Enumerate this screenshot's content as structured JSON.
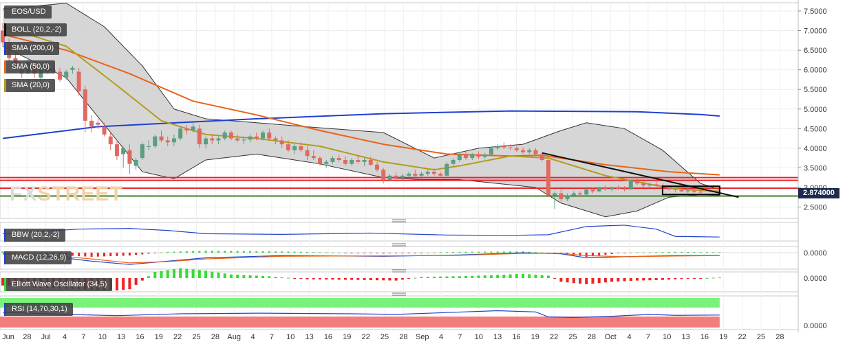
{
  "panels": {
    "symbol": "EOS/USD",
    "bollinger_label": "BOLL (20,2,-2)",
    "sma200_label": "SMA (200,0)",
    "sma50_label": "SMA (50,0)",
    "sma20_label": "SMA (20,0)",
    "bbw_label": "BBW (20,2,-2)",
    "macd_label": "MACD (12,26,9)",
    "ewo_label": "Elliott Wave Oscillator (34,5)",
    "rsi_label": "RSI (14,70,30,1)"
  },
  "watermark": {
    "part1": "FX",
    "part2": "STREET"
  },
  "current_price": "2.874000",
  "colors": {
    "up": "#5b9e82",
    "down": "#e06a62",
    "sma200": "#1f3fcf",
    "sma50": "#e8641a",
    "sma20": "#b39b1c",
    "boll_fill": "#cfcfcf",
    "support": "#3d7d1e",
    "resistance": "#e8222a",
    "trendline": "#111111",
    "bbw": "#2244cc",
    "macd_line": "#2244cc",
    "macd_signal": "#e8641a",
    "osc_up": "#33dd33",
    "osc_down": "#ee2222",
    "rsi_band_high": "#79f279",
    "rsi_band_low": "#f37c7c"
  },
  "chart_data": {
    "type": "candlestick",
    "x_axis_labels": [
      "Jun",
      "28",
      "Jul",
      "4",
      "7",
      "10",
      "13",
      "16",
      "19",
      "22",
      "25",
      "28",
      "Aug",
      "4",
      "7",
      "10",
      "13",
      "16",
      "19",
      "22",
      "25",
      "28",
      "Sep",
      "4",
      "7",
      "10",
      "13",
      "16",
      "19",
      "22",
      "25",
      "28",
      "Oct",
      "4",
      "7",
      "10",
      "13",
      "16",
      "19",
      "22",
      "25",
      "28"
    ],
    "y_axis_ticks": [
      "7.5000",
      "7.0000",
      "6.5000",
      "6.0000",
      "5.5000",
      "5.0000",
      "4.5000",
      "4.0000",
      "3.5000",
      "3.0000",
      "2.5000"
    ],
    "ylim": [
      2.0,
      7.7
    ],
    "oscillator_tick": "0.0000",
    "candles": [
      [
        7.0,
        7.2,
        6.6,
        6.7
      ],
      [
        6.7,
        6.8,
        6.2,
        6.3
      ],
      [
        6.3,
        6.4,
        6.0,
        6.1
      ],
      [
        6.1,
        6.2,
        5.8,
        5.9
      ],
      [
        5.9,
        6.3,
        5.9,
        6.2
      ],
      [
        6.1,
        6.2,
        5.8,
        5.9
      ],
      [
        5.8,
        6.05,
        5.7,
        6.0
      ],
      [
        5.95,
        6.1,
        5.9,
        6.0
      ],
      [
        6.0,
        6.1,
        5.9,
        5.95
      ],
      [
        5.95,
        6.05,
        5.7,
        5.75
      ],
      [
        5.8,
        6.0,
        5.75,
        5.95
      ],
      [
        6.0,
        6.1,
        5.9,
        6.05
      ],
      [
        5.95,
        6.05,
        5.35,
        5.45
      ],
      [
        5.5,
        5.6,
        4.4,
        4.7
      ],
      [
        4.7,
        4.85,
        4.4,
        4.55
      ],
      [
        4.65,
        4.75,
        4.5,
        4.6
      ],
      [
        4.55,
        4.65,
        4.3,
        4.35
      ],
      [
        4.3,
        4.4,
        3.95,
        4.1
      ],
      [
        4.1,
        4.2,
        3.7,
        3.8
      ],
      [
        3.85,
        4.05,
        3.5,
        4.0
      ],
      [
        3.95,
        4.1,
        3.35,
        3.6
      ],
      [
        3.55,
        3.75,
        3.45,
        3.7
      ],
      [
        3.75,
        4.15,
        3.7,
        4.1
      ],
      [
        4.05,
        4.2,
        3.95,
        4.05
      ],
      [
        4.05,
        4.35,
        4.0,
        4.3
      ],
      [
        4.3,
        4.45,
        4.15,
        4.2
      ],
      [
        4.2,
        4.3,
        4.05,
        4.15
      ],
      [
        4.15,
        4.35,
        4.05,
        4.25
      ],
      [
        4.25,
        4.55,
        4.2,
        4.5
      ],
      [
        4.5,
        4.6,
        4.35,
        4.45
      ],
      [
        4.45,
        4.65,
        4.4,
        4.55
      ],
      [
        4.5,
        4.6,
        4.0,
        4.1
      ],
      [
        4.1,
        4.3,
        4.0,
        4.25
      ],
      [
        4.25,
        4.35,
        4.1,
        4.2
      ],
      [
        4.2,
        4.3,
        4.1,
        4.25
      ],
      [
        4.25,
        4.45,
        4.2,
        4.4
      ],
      [
        4.4,
        4.45,
        4.2,
        4.25
      ],
      [
        4.25,
        4.35,
        4.15,
        4.2
      ],
      [
        4.2,
        4.3,
        4.1,
        4.22
      ],
      [
        4.22,
        4.35,
        4.15,
        4.3
      ],
      [
        4.3,
        4.4,
        4.2,
        4.25
      ],
      [
        4.25,
        4.45,
        4.2,
        4.4
      ],
      [
        4.4,
        4.5,
        4.2,
        4.25
      ],
      [
        4.25,
        4.3,
        4.1,
        4.2
      ],
      [
        4.2,
        4.3,
        4.0,
        4.1
      ],
      [
        4.1,
        4.2,
        3.9,
        3.95
      ],
      [
        3.95,
        4.1,
        3.85,
        4.05
      ],
      [
        4.05,
        4.15,
        3.9,
        3.95
      ],
      [
        3.95,
        4.05,
        3.7,
        3.8
      ],
      [
        3.8,
        3.95,
        3.7,
        3.75
      ],
      [
        3.75,
        3.8,
        3.55,
        3.6
      ],
      [
        3.6,
        3.7,
        3.5,
        3.65
      ],
      [
        3.65,
        3.8,
        3.6,
        3.75
      ],
      [
        3.75,
        3.85,
        3.65,
        3.7
      ],
      [
        3.7,
        3.8,
        3.55,
        3.6
      ],
      [
        3.6,
        3.75,
        3.55,
        3.7
      ],
      [
        3.7,
        3.8,
        3.6,
        3.65
      ],
      [
        3.65,
        3.75,
        3.55,
        3.7
      ],
      [
        3.7,
        3.78,
        3.55,
        3.58
      ],
      [
        3.58,
        3.65,
        3.4,
        3.45
      ],
      [
        3.45,
        3.5,
        3.1,
        3.2
      ],
      [
        3.2,
        3.35,
        3.15,
        3.3
      ],
      [
        3.3,
        3.38,
        3.15,
        3.25
      ],
      [
        3.25,
        3.35,
        3.2,
        3.3
      ],
      [
        3.3,
        3.4,
        3.25,
        3.35
      ],
      [
        3.35,
        3.45,
        3.25,
        3.3
      ],
      [
        3.3,
        3.4,
        3.2,
        3.35
      ],
      [
        3.35,
        3.45,
        3.3,
        3.4
      ],
      [
        3.4,
        3.5,
        3.3,
        3.35
      ],
      [
        3.35,
        3.4,
        3.2,
        3.3
      ],
      [
        3.3,
        3.65,
        3.28,
        3.6
      ],
      [
        3.6,
        3.75,
        3.55,
        3.7
      ],
      [
        3.7,
        3.9,
        3.65,
        3.85
      ],
      [
        3.85,
        3.95,
        3.7,
        3.75
      ],
      [
        3.75,
        3.88,
        3.7,
        3.85
      ],
      [
        3.85,
        3.92,
        3.72,
        3.78
      ],
      [
        3.78,
        3.88,
        3.72,
        3.84
      ],
      [
        3.84,
        4.05,
        3.8,
        4.0
      ],
      [
        4.0,
        4.1,
        3.95,
        4.05
      ],
      [
        4.05,
        4.15,
        3.98,
        4.02
      ],
      [
        4.02,
        4.1,
        3.95,
        4.0
      ],
      [
        4.0,
        4.05,
        3.9,
        3.95
      ],
      [
        3.95,
        4.02,
        3.85,
        3.9
      ],
      [
        3.9,
        4.0,
        3.85,
        3.95
      ],
      [
        3.95,
        4.0,
        3.8,
        3.85
      ],
      [
        3.85,
        3.88,
        3.65,
        3.7
      ],
      [
        3.7,
        3.72,
        2.75,
        2.8
      ],
      [
        2.8,
        2.9,
        2.45,
        2.85
      ],
      [
        2.85,
        2.95,
        2.65,
        2.7
      ],
      [
        2.7,
        2.85,
        2.65,
        2.8
      ],
      [
        2.8,
        2.9,
        2.75,
        2.85
      ],
      [
        2.85,
        2.9,
        2.78,
        2.82
      ],
      [
        2.82,
        2.98,
        2.8,
        2.95
      ],
      [
        2.95,
        3.0,
        2.85,
        2.9
      ],
      [
        2.9,
        3.02,
        2.88,
        2.98
      ],
      [
        2.98,
        3.05,
        2.92,
        2.95
      ],
      [
        2.95,
        3.02,
        2.9,
        2.98
      ],
      [
        2.98,
        3.05,
        2.93,
        2.97
      ],
      [
        2.97,
        3.03,
        2.9,
        2.95
      ],
      [
        2.95,
        3.2,
        2.94,
        3.18
      ],
      [
        3.18,
        3.25,
        3.05,
        3.1
      ],
      [
        3.1,
        3.15,
        3.0,
        3.05
      ],
      [
        3.05,
        3.12,
        3.0,
        3.08
      ],
      [
        3.08,
        3.15,
        3.02,
        3.05
      ],
      [
        3.05,
        3.1,
        2.95,
        3.0
      ],
      [
        3.0,
        3.05,
        2.92,
        2.95
      ],
      [
        2.95,
        3.0,
        2.88,
        2.93
      ],
      [
        2.93,
        2.98,
        2.88,
        2.9
      ],
      [
        2.9,
        2.97,
        2.86,
        2.92
      ],
      [
        2.92,
        2.96,
        2.86,
        2.89
      ],
      [
        2.89,
        2.94,
        2.85,
        2.87
      ]
    ],
    "series": [
      {
        "name": "SMA (200,0)",
        "values": [
          [
            0,
            4.25
          ],
          [
            15,
            4.55
          ],
          [
            40,
            4.75
          ],
          [
            60,
            4.88
          ],
          [
            80,
            4.95
          ],
          [
            100,
            4.93
          ],
          [
            110,
            4.86
          ],
          [
            113,
            4.82
          ]
        ]
      },
      {
        "name": "SMA (50,0)",
        "values": [
          [
            0,
            6.9
          ],
          [
            10,
            6.5
          ],
          [
            20,
            5.9
          ],
          [
            30,
            5.2
          ],
          [
            40,
            4.85
          ],
          [
            50,
            4.45
          ],
          [
            60,
            4.1
          ],
          [
            70,
            3.85
          ],
          [
            80,
            3.8
          ],
          [
            85,
            3.82
          ],
          [
            95,
            3.58
          ],
          [
            105,
            3.4
          ],
          [
            113,
            3.32
          ]
        ]
      },
      {
        "name": "SMA (20,0)",
        "values": [
          [
            0,
            7.1
          ],
          [
            10,
            6.6
          ],
          [
            18,
            5.6
          ],
          [
            25,
            4.7
          ],
          [
            32,
            4.35
          ],
          [
            40,
            4.25
          ],
          [
            50,
            4.05
          ],
          [
            60,
            3.65
          ],
          [
            68,
            3.45
          ],
          [
            72,
            3.55
          ],
          [
            80,
            3.8
          ],
          [
            86,
            3.75
          ],
          [
            95,
            3.3
          ],
          [
            103,
            3.05
          ],
          [
            107,
            2.95
          ],
          [
            113,
            2.9
          ]
        ]
      },
      {
        "name": "BOLL (20,2,-2) upper",
        "values": [
          [
            0,
            7.55
          ],
          [
            10,
            7.7
          ],
          [
            16,
            7.1
          ],
          [
            22,
            6.1
          ],
          [
            27,
            5.0
          ],
          [
            32,
            4.75
          ],
          [
            40,
            4.65
          ],
          [
            50,
            4.52
          ],
          [
            60,
            4.4
          ],
          [
            68,
            3.75
          ],
          [
            75,
            4.0
          ],
          [
            82,
            4.1
          ],
          [
            88,
            4.45
          ],
          [
            92,
            4.65
          ],
          [
            98,
            4.5
          ],
          [
            104,
            3.95
          ],
          [
            110,
            3.1
          ],
          [
            113,
            2.95
          ]
        ]
      },
      {
        "name": "BOLL (20,2,-2) lower",
        "values": [
          [
            0,
            6.6
          ],
          [
            10,
            5.8
          ],
          [
            16,
            4.6
          ],
          [
            22,
            3.4
          ],
          [
            27,
            3.22
          ],
          [
            32,
            3.7
          ],
          [
            40,
            3.85
          ],
          [
            50,
            3.6
          ],
          [
            60,
            3.25
          ],
          [
            66,
            3.2
          ],
          [
            72,
            3.2
          ],
          [
            78,
            3.1
          ],
          [
            84,
            3.0
          ],
          [
            88,
            2.6
          ],
          [
            95,
            2.25
          ],
          [
            100,
            2.4
          ],
          [
            105,
            2.75
          ],
          [
            110,
            2.82
          ],
          [
            113,
            2.8
          ]
        ]
      }
    ],
    "horizontal_levels": [
      {
        "name": "resistance",
        "values": [
          3.25,
          3.18,
          2.98
        ]
      },
      {
        "name": "support",
        "values": [
          2.78
        ]
      }
    ],
    "trendline": {
      "from": [
        85,
        3.88
      ],
      "to": [
        116,
        2.75
      ]
    },
    "consolidation_box": {
      "x": [
        104,
        113
      ],
      "y": [
        2.82,
        3.03
      ]
    },
    "bbw": [
      [
        0,
        0.2
      ],
      [
        12,
        0.34
      ],
      [
        20,
        0.36
      ],
      [
        26,
        0.3
      ],
      [
        32,
        0.2
      ],
      [
        44,
        0.18
      ],
      [
        58,
        0.22
      ],
      [
        70,
        0.16
      ],
      [
        80,
        0.15
      ],
      [
        86,
        0.17
      ],
      [
        92,
        0.42
      ],
      [
        98,
        0.46
      ],
      [
        103,
        0.34
      ],
      [
        106,
        0.12
      ],
      [
        113,
        0.1
      ]
    ],
    "macd": [
      [
        0,
        0.05
      ],
      [
        8,
        -0.1
      ],
      [
        14,
        -0.3
      ],
      [
        20,
        -0.45
      ],
      [
        26,
        -0.3
      ],
      [
        32,
        -0.15
      ],
      [
        44,
        -0.05
      ],
      [
        60,
        -0.08
      ],
      [
        72,
        -0.02
      ],
      [
        82,
        0.08
      ],
      [
        88,
        0.03
      ],
      [
        92,
        -0.15
      ],
      [
        98,
        -0.1
      ],
      [
        106,
        -0.05
      ],
      [
        113,
        -0.04
      ]
    ],
    "macd_signal": [
      [
        0,
        0.02
      ],
      [
        8,
        -0.05
      ],
      [
        14,
        -0.2
      ],
      [
        20,
        -0.38
      ],
      [
        26,
        -0.32
      ],
      [
        32,
        -0.2
      ],
      [
        44,
        -0.08
      ],
      [
        60,
        -0.06
      ],
      [
        72,
        -0.04
      ],
      [
        82,
        0.05
      ],
      [
        88,
        0.05
      ],
      [
        92,
        -0.05
      ],
      [
        98,
        -0.1
      ],
      [
        106,
        -0.07
      ],
      [
        113,
        -0.05
      ]
    ],
    "ewo": [
      [
        0,
        -0.6
      ],
      [
        6,
        -0.8
      ],
      [
        12,
        -0.9
      ],
      [
        18,
        -1.0
      ],
      [
        20,
        -0.9
      ],
      [
        24,
        0.5
      ],
      [
        28,
        0.8
      ],
      [
        32,
        0.6
      ],
      [
        36,
        0.3
      ],
      [
        42,
        0.15
      ],
      [
        48,
        -0.1
      ],
      [
        56,
        -0.15
      ],
      [
        62,
        -0.2
      ],
      [
        66,
        0.1
      ],
      [
        72,
        0.15
      ],
      [
        78,
        0.25
      ],
      [
        82,
        0.35
      ],
      [
        86,
        0.2
      ],
      [
        88,
        -0.3
      ],
      [
        92,
        -0.5
      ],
      [
        96,
        -0.3
      ],
      [
        100,
        -0.2
      ],
      [
        104,
        -0.15
      ],
      [
        108,
        -0.05
      ],
      [
        113,
        0.05
      ]
    ],
    "rsi": [
      [
        0,
        55
      ],
      [
        10,
        48
      ],
      [
        18,
        44
      ],
      [
        28,
        50
      ],
      [
        40,
        52
      ],
      [
        55,
        50
      ],
      [
        62,
        48
      ],
      [
        70,
        54
      ],
      [
        78,
        60
      ],
      [
        84,
        56
      ],
      [
        86,
        40
      ],
      [
        90,
        38
      ],
      [
        96,
        42
      ],
      [
        102,
        48
      ],
      [
        106,
        45
      ],
      [
        113,
        46
      ]
    ]
  }
}
